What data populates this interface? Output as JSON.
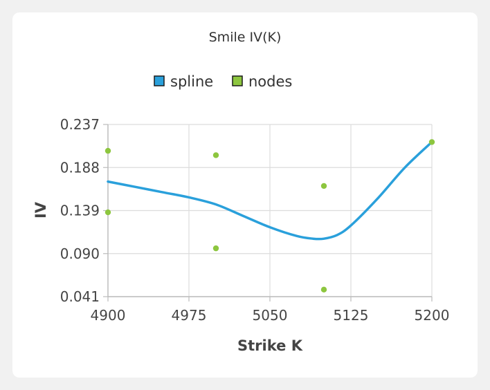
{
  "chart_data": {
    "type": "line",
    "title": "Smile IV(K)",
    "xlabel": "Strike K",
    "ylabel": "IV",
    "xlim": [
      4900,
      5200
    ],
    "ylim": [
      0.041,
      0.237
    ],
    "x_ticks": [
      "4900",
      "4975",
      "5050",
      "5125",
      "5200"
    ],
    "y_ticks": [
      "0.237",
      "0.188",
      "0.139",
      "0.090",
      "0.041"
    ],
    "grid": true,
    "legend_position": "top-center",
    "legend": [
      {
        "label": "spline",
        "color": "#2aa0db"
      },
      {
        "label": "nodes",
        "color": "#8dc63f"
      }
    ],
    "series": [
      {
        "name": "spline",
        "type": "line",
        "color": "#2aa0db",
        "x": [
          4900,
          4925,
          4950,
          4975,
          5000,
          5025,
          5050,
          5075,
          5090,
          5100,
          5112,
          5125,
          5150,
          5175,
          5200
        ],
        "y": [
          0.172,
          0.166,
          0.16,
          0.154,
          0.146,
          0.133,
          0.12,
          0.11,
          0.107,
          0.107,
          0.111,
          0.122,
          0.153,
          0.188,
          0.217
        ]
      },
      {
        "name": "nodes",
        "type": "scatter",
        "color": "#8dc63f",
        "x": [
          4900,
          4900,
          5000,
          5000,
          5100,
          5100,
          5200
        ],
        "y": [
          0.207,
          0.137,
          0.202,
          0.096,
          0.167,
          0.049,
          0.217
        ]
      }
    ]
  }
}
